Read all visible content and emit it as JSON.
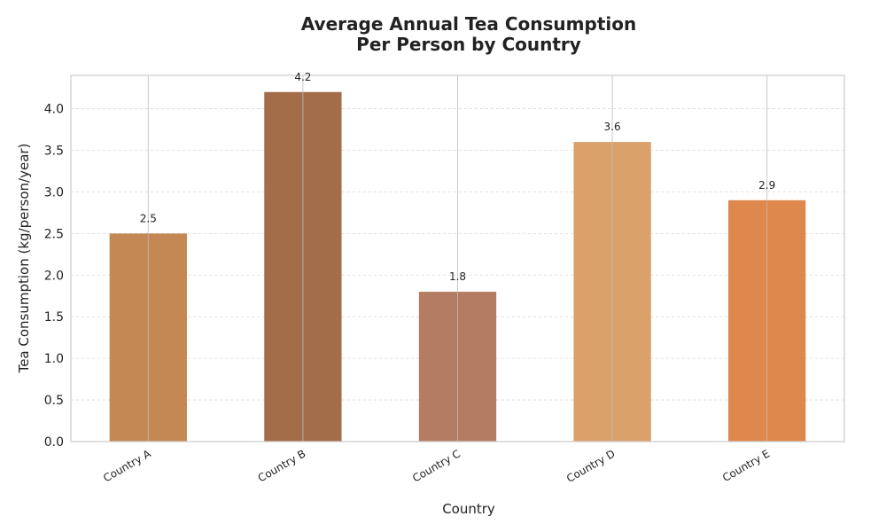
{
  "chart_data": {
    "type": "bar",
    "title_lines": [
      "Average Annual Tea Consumption",
      "Per Person by Country"
    ],
    "xlabel": "Country",
    "ylabel": "Tea Consumption (kg/person/year)",
    "categories": [
      "Country A",
      "Country B",
      "Country C",
      "Country D",
      "Country E"
    ],
    "values": [
      2.5,
      4.2,
      1.8,
      3.6,
      2.9
    ],
    "value_labels": [
      "2.5",
      "4.2",
      "1.8",
      "3.6",
      "2.9"
    ],
    "colors": [
      "#c0824a",
      "#9e6540",
      "#b0755a",
      "#d89c62",
      "#dc8244"
    ],
    "ylim": [
      0,
      4.4
    ],
    "yticks": [
      0.0,
      0.5,
      1.0,
      1.5,
      2.0,
      2.5,
      3.0,
      3.5,
      4.0
    ],
    "ytick_labels": [
      "0.0",
      "0.5",
      "1.0",
      "1.5",
      "2.0",
      "2.5",
      "3.0",
      "3.5",
      "4.0"
    ],
    "grid": true
  }
}
